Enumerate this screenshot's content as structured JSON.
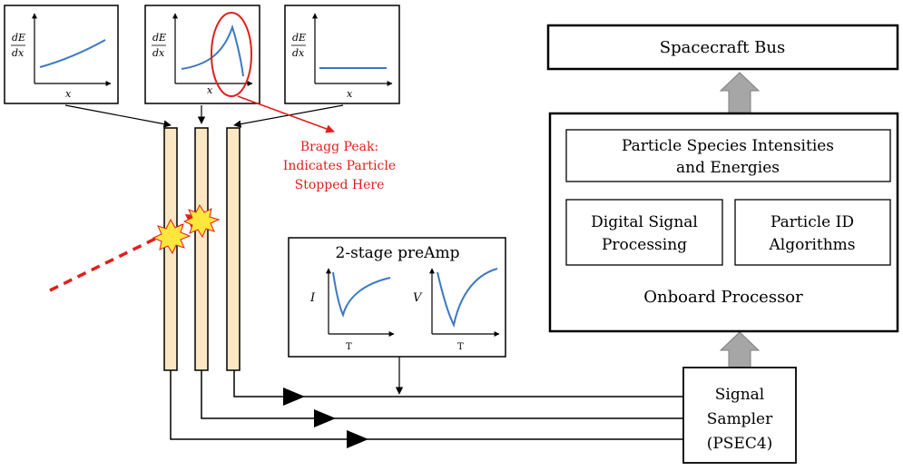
{
  "plots": {
    "plot1": {
      "y_num": "dE",
      "y_den": "dx",
      "x": "x"
    },
    "plot2": {
      "y_num": "dE",
      "y_den": "dx",
      "x": "x"
    },
    "plot3": {
      "y_num": "dE",
      "y_den": "dx",
      "x": "x"
    }
  },
  "bragg": {
    "line1": "Bragg Peak:",
    "line2": "Indicates Particle",
    "line3": "Stopped Here"
  },
  "preamp": {
    "title": "2-stage preAmp",
    "current_label": "I",
    "voltage_label": "V",
    "time_label_1": "T",
    "time_label_2": "T"
  },
  "spacecraft_bus": "Spacecraft Bus",
  "processor": {
    "title": "Onboard Processor",
    "intensities_line1": "Particle Species Intensities",
    "intensities_line2": "and Energies",
    "dsp_line1": "Digital Signal",
    "dsp_line2": "Processing",
    "pid_line1": "Particle ID",
    "pid_line2": "Algorithms"
  },
  "sampler": {
    "line1": "Signal",
    "line2": "Sampler",
    "line3": "(PSEC4)"
  },
  "colors": {
    "detector_fill": "#fbe8c3",
    "curve": "#3b78c4",
    "accent_red": "#e0201c",
    "arrow_gray": "#a6a6a6"
  }
}
